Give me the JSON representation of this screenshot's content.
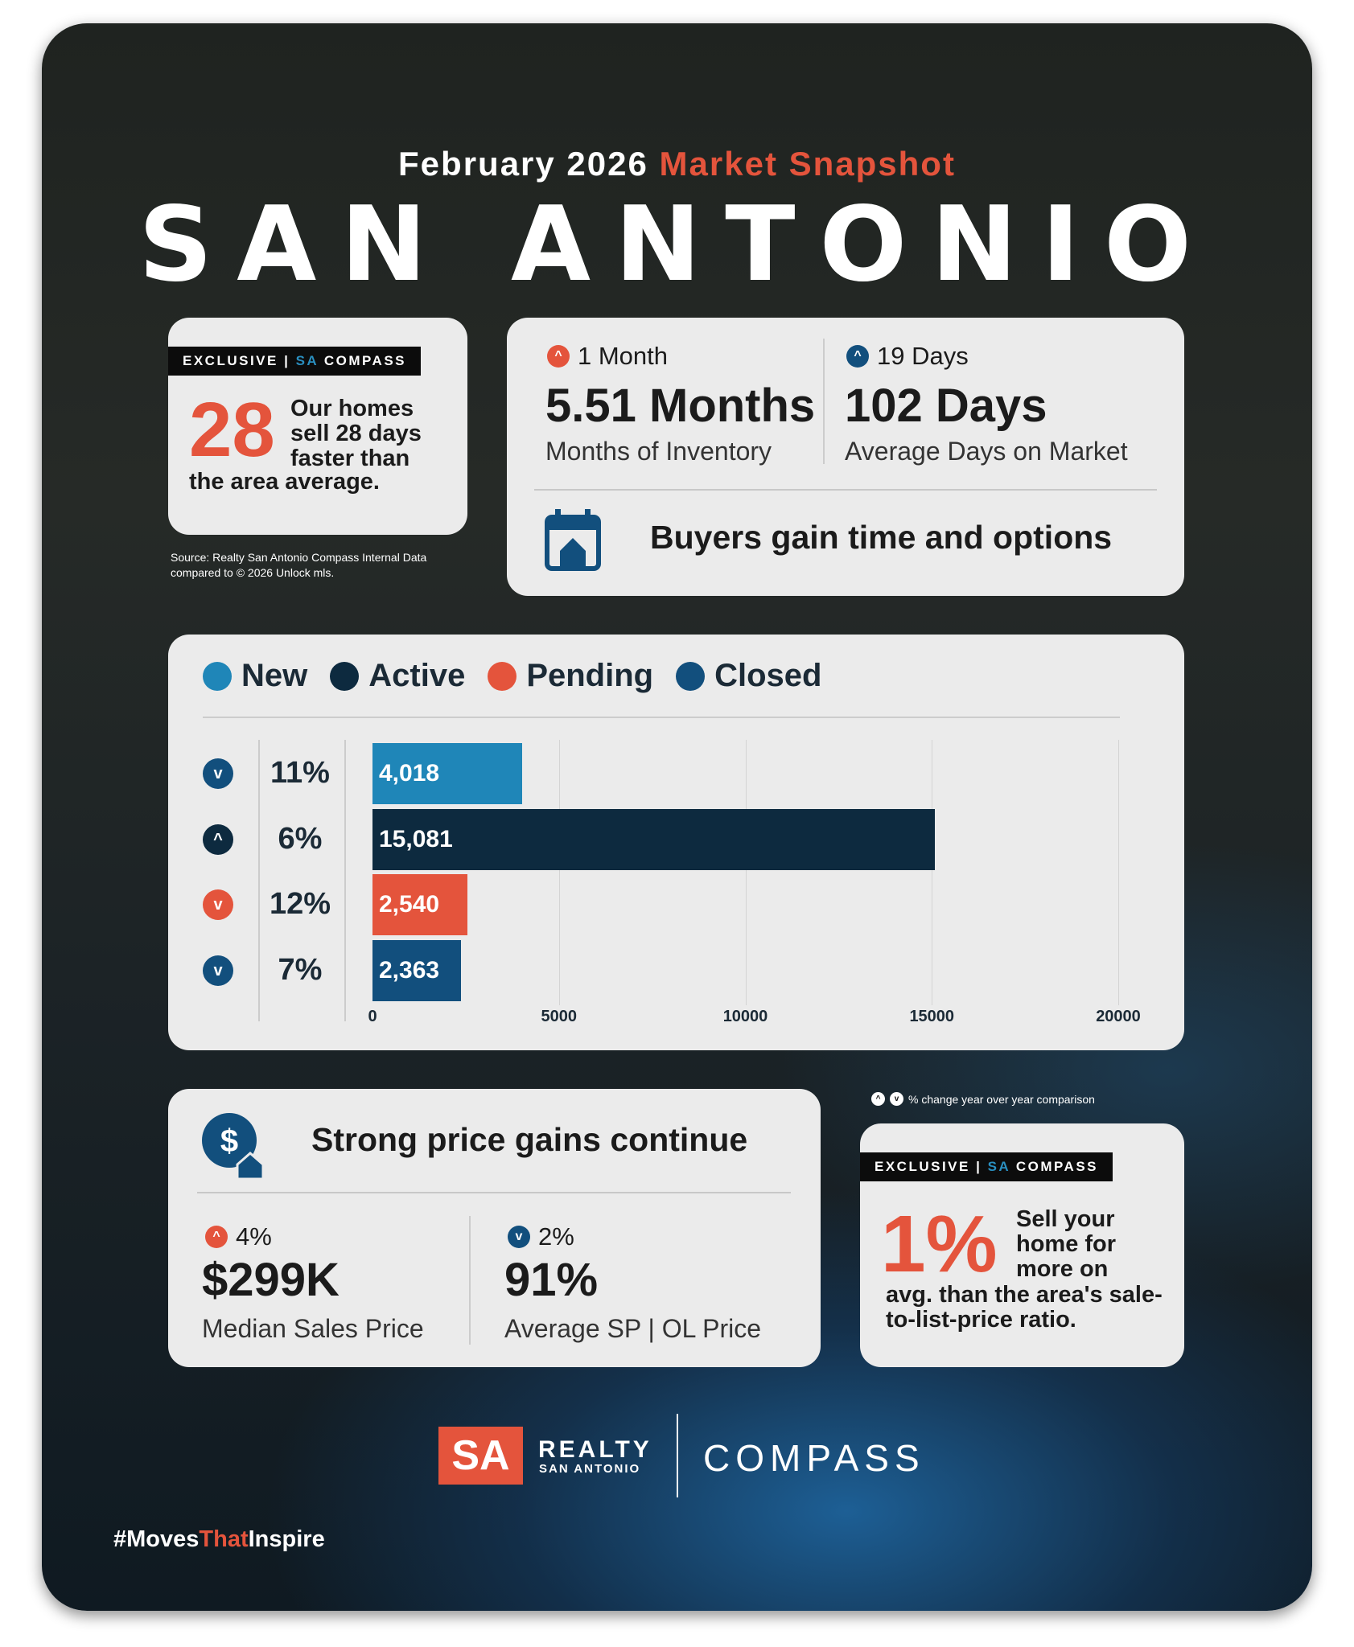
{
  "header": {
    "subtitle_prefix": "February 2026",
    "subtitle_accent": "Market Snapshot",
    "city": "SAN ANTONIO"
  },
  "colors": {
    "accent_red": "#e4543c",
    "navy": "#0d2a3f",
    "blue": "#1f86b8",
    "closed_blue": "#124f7d"
  },
  "exclusive_card": {
    "badge_left": "EXCLUSIVE |",
    "badge_sa": "SA",
    "badge_right": "COMPASS",
    "number": "28",
    "text_top": "Our homes sell 28 days faster than",
    "text_bottom": "the area average."
  },
  "source": {
    "line1": "Source: Realty San Antonio Compass Internal Data",
    "line2": "compared to © 2026 Unlock mls."
  },
  "inventory_card": {
    "left": {
      "change": "1 Month",
      "change_dir": "up",
      "value": "5.51 Months",
      "label": "Months of Inventory"
    },
    "right": {
      "change": "19 Days",
      "change_dir": "up",
      "value": "102 Days",
      "label": "Average Days on Market"
    },
    "headline": "Buyers gain time and options",
    "icon": "calendar-house-icon"
  },
  "chart_data": {
    "type": "bar",
    "orientation": "horizontal",
    "legend": [
      "New",
      "Active",
      "Pending",
      "Closed"
    ],
    "series": [
      {
        "name": "New",
        "value": 4018,
        "label": "4,018",
        "change": "11%",
        "change_dir": "down",
        "color": "#1f86b8"
      },
      {
        "name": "Active",
        "value": 15081,
        "label": "15,081",
        "change": "6%",
        "change_dir": "up",
        "color": "#0d2a3f"
      },
      {
        "name": "Pending",
        "value": 2540,
        "label": "2,540",
        "change": "12%",
        "change_dir": "down",
        "color": "#e4543c"
      },
      {
        "name": "Closed",
        "value": 2363,
        "label": "2,363",
        "change": "7%",
        "change_dir": "down",
        "color": "#124f7d"
      }
    ],
    "xlim": [
      0,
      20000
    ],
    "xticks": [
      "0",
      "5000",
      "10000",
      "15000",
      "20000"
    ],
    "grid": true,
    "legend_position": "top"
  },
  "price_card": {
    "headline": "Strong price gains continue",
    "icon": "dollar-house-icon",
    "left": {
      "change": "4%",
      "change_dir": "up",
      "value": "$299K",
      "label": "Median Sales Price"
    },
    "right": {
      "change": "2%",
      "change_dir": "down",
      "value": "91%",
      "label": "Average SP | OL Price"
    }
  },
  "note": "% change year over year comparison",
  "ratio_card": {
    "badge_left": "EXCLUSIVE |",
    "badge_sa": "SA",
    "badge_right": "COMPASS",
    "number": "1%",
    "text_top": "Sell your home for more on",
    "text_bottom": "avg. than the area's sale-to-list-price ratio."
  },
  "footer": {
    "logo_sa": "SA",
    "logo_realty": "REALTY",
    "logo_sub": "SAN ANTONIO",
    "compass": "COMPASS",
    "hashtag_a": "#Moves",
    "hashtag_b": "That",
    "hashtag_c": "Inspire"
  }
}
